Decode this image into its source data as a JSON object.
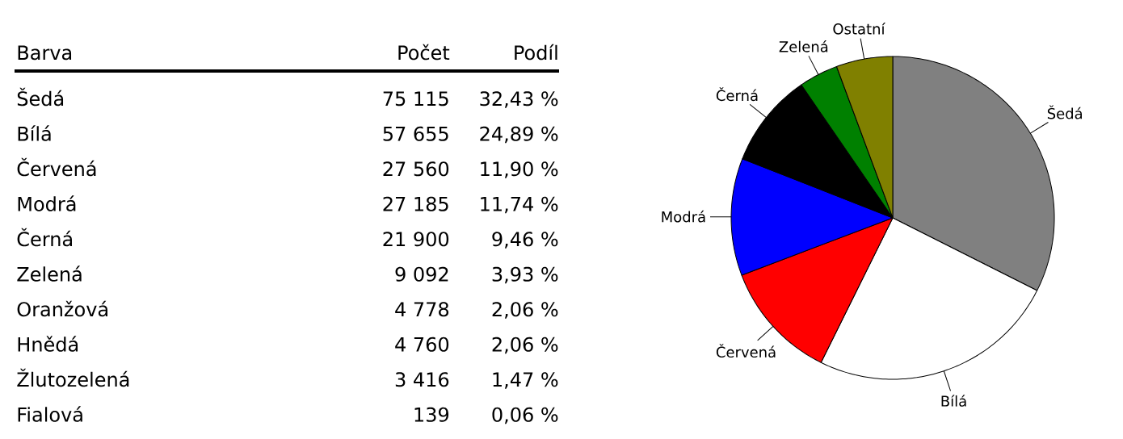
{
  "chart_data": [
    {
      "type": "other",
      "xlabel": "Barva",
      "data_labels": true,
      "categories": [
        "Šedá",
        "Bílá",
        "Červená",
        "Modrá",
        "Černá",
        "Zelená",
        "Oranžová",
        "Hnědá",
        "Žlutozelená",
        "Fialová"
      ],
      "series": [
        {
          "name": "Počet",
          "values": [
            75115,
            57655,
            27560,
            27185,
            21900,
            9092,
            4778,
            4760,
            3416,
            139
          ]
        },
        {
          "name": "Podíl",
          "values": [
            32.43,
            24.89,
            11.9,
            11.74,
            9.46,
            3.93,
            2.06,
            2.06,
            1.47,
            0.06
          ],
          "value_labels": [
            "32,43 %",
            "24,89 %",
            "11,90 %",
            "11,74 %",
            "9,46 %",
            "3,93 %",
            "2,06 %",
            "2,06 %",
            "1,47 %",
            "0,06 %"
          ]
        }
      ]
    },
    {
      "type": "pie",
      "categories": [
        "Šedá",
        "Bílá",
        "Červená",
        "Modrá",
        "Černá",
        "Zelená",
        "Ostatní"
      ],
      "values": [
        32.43,
        24.89,
        11.9,
        11.74,
        9.46,
        3.93,
        5.65
      ],
      "colors": [
        "#808080",
        "#ffffff",
        "#ff0000",
        "#0000ff",
        "#000000",
        "#008000",
        "#808000"
      ]
    }
  ]
}
